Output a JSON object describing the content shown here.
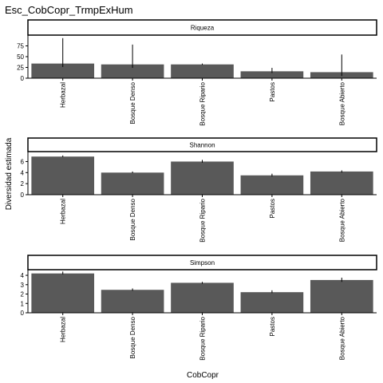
{
  "title": "Esc_CobCopr_TrmpExHum",
  "xlabel": "CobCopr",
  "ylabel": "Diversidad estimada",
  "colors": {
    "bar": "#595959",
    "error": "#000000",
    "strip_fill": "#ffffff",
    "axis": "#000000"
  },
  "chart_data": {
    "type": "bar",
    "title": "Esc_CobCopr_TrmpExHum",
    "xlabel": "CobCopr",
    "ylabel": "Diversidad estimada",
    "categories": [
      "Herbazal",
      "Bosque Denso",
      "Bosque Ripario",
      "Pastos",
      "Bosque Abierto"
    ],
    "grid": false,
    "panels": [
      {
        "name": "Riqueza",
        "ylim": [
          0,
          100
        ],
        "yticks": [
          0,
          25,
          50,
          75
        ],
        "values": [
          34,
          32,
          32,
          16,
          14
        ],
        "error_low": [
          26,
          24,
          31,
          12,
          5
        ],
        "error_high": [
          93,
          78,
          34,
          24,
          55
        ]
      },
      {
        "name": "Shannon",
        "ylim": [
          0,
          7.8
        ],
        "yticks": [
          0,
          2,
          4,
          6
        ],
        "values": [
          6.9,
          4.0,
          6.0,
          3.5,
          4.2
        ],
        "error_low": [
          6.8,
          3.9,
          5.8,
          3.3,
          4.0
        ],
        "error_high": [
          7.1,
          4.2,
          6.3,
          3.8,
          4.4
        ]
      },
      {
        "name": "Simpson",
        "ylim": [
          0,
          4.6
        ],
        "yticks": [
          0,
          1,
          2,
          3,
          4
        ],
        "values": [
          4.2,
          2.45,
          3.2,
          2.2,
          3.5
        ],
        "error_low": [
          4.1,
          2.35,
          3.1,
          2.1,
          3.3
        ],
        "error_high": [
          4.4,
          2.6,
          3.3,
          2.4,
          3.75
        ]
      }
    ]
  }
}
